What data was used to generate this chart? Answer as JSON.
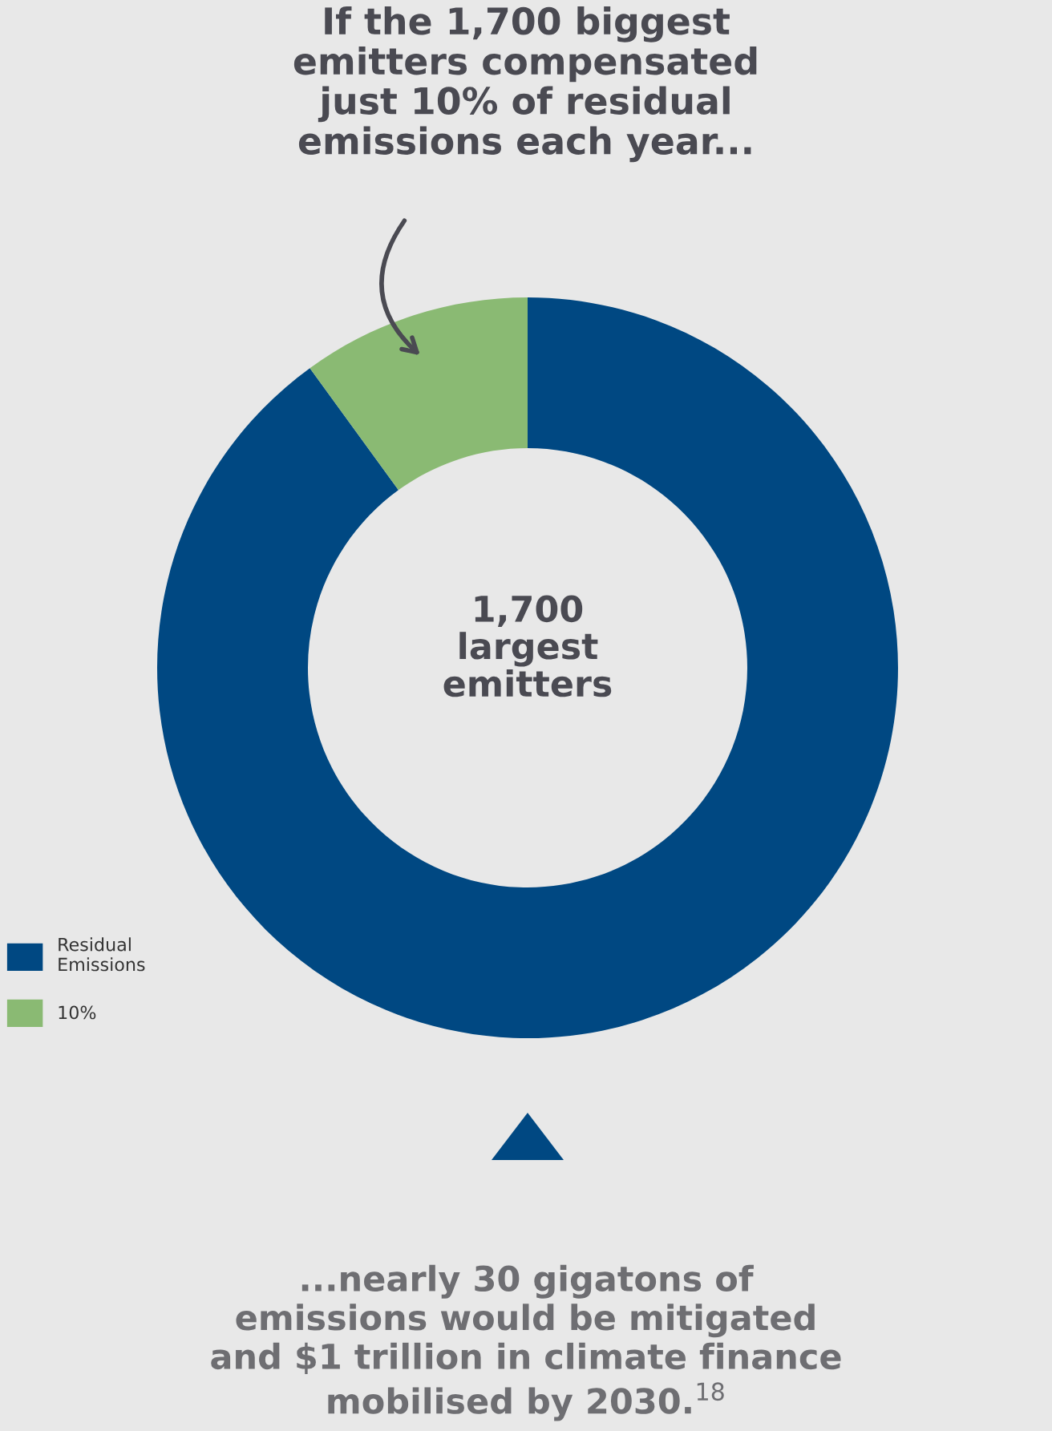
{
  "chart_data": {
    "type": "donut",
    "title": "If the 1,700 biggest\nemitters compensated\njust 10% of residual\nemissions each year...",
    "categories": [
      "Residual Emissions",
      "10%"
    ],
    "values": [
      90,
      10
    ],
    "colors": [
      "#004882",
      "#8aba73"
    ],
    "legend": "bottom left",
    "annotations": [
      "1,700\nlargest\nemitters",
      "...nearly 30 gigatons of\nemissions would be mitigated\nand $1 trillion in climate finance\nmobilised by 2030.$^{18}$"
    ]
  }
}
